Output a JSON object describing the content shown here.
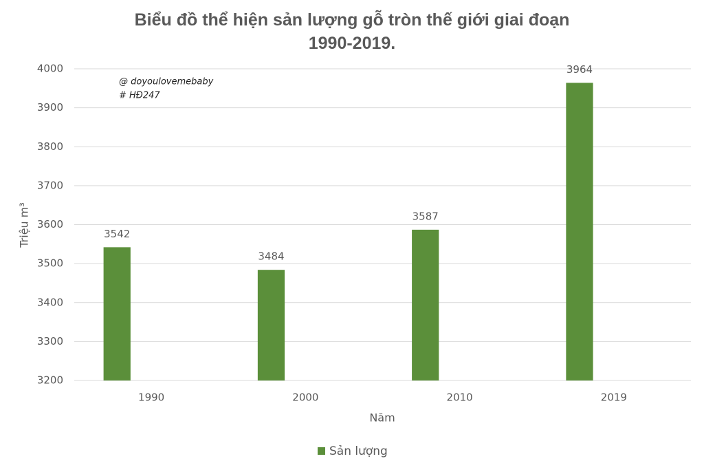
{
  "chart_data": {
    "type": "bar",
    "title": "Biểu đồ thể hiện sản lượng gỗ tròn thế giới giai đoạn 1990-2019.",
    "annotations": [
      "@ doyoulovemebaby",
      "# HĐ247"
    ],
    "x_label": "Năm",
    "y_label": "Triệu m³",
    "categories": [
      "1990",
      "2000",
      "2010",
      "2019"
    ],
    "series": [
      {
        "name": "Sản lượng",
        "color": "#5b8f3a",
        "values": [
          3542,
          3484,
          3587,
          3964
        ]
      }
    ],
    "ylim": [
      3200,
      4000
    ],
    "yticks": [
      3200,
      3300,
      3400,
      3500,
      3600,
      3700,
      3800,
      3900,
      4000
    ],
    "grid": true,
    "legend": "bottom"
  }
}
